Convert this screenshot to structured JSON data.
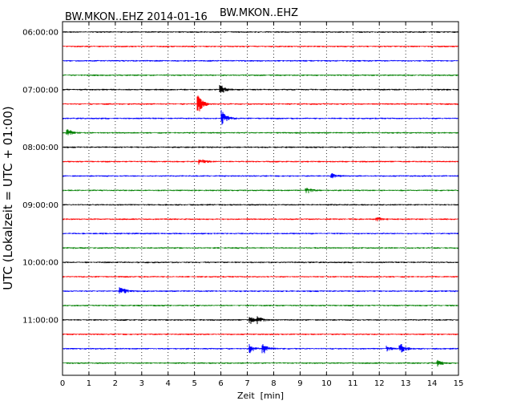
{
  "chart_data": {
    "type": "line",
    "title": "BW.MKON..EHZ",
    "subtitle": "BW.MKON..EHZ 2014-01-16",
    "xlabel": "Zeit  [min]",
    "ylabel": "UTC (Lokalzeit = UTC + 01:00)",
    "xlim": [
      0,
      15
    ],
    "x_ticks": [
      0,
      1,
      2,
      3,
      4,
      5,
      6,
      7,
      8,
      9,
      10,
      11,
      12,
      13,
      14,
      15
    ],
    "y_ticks": [
      "06:00:00",
      "07:00:00",
      "08:00:00",
      "09:00:00",
      "10:00:00",
      "11:00:00"
    ],
    "grid": true,
    "trace_colors": [
      "#000000",
      "#ff0000",
      "#0000ff",
      "#008000"
    ],
    "traces_count": 24,
    "rows_per_hour": 4,
    "events": [
      {
        "trace": 4,
        "minute": 6.0,
        "amp": 6
      },
      {
        "trace": 5,
        "minute": 5.15,
        "amp": 11
      },
      {
        "trace": 6,
        "minute": 6.05,
        "amp": 11
      },
      {
        "trace": 7,
        "minute": 0.2,
        "amp": 5
      },
      {
        "trace": 9,
        "minute": 5.2,
        "amp": 4
      },
      {
        "trace": 10,
        "minute": 10.2,
        "amp": 3
      },
      {
        "trace": 11,
        "minute": 9.25,
        "amp": 4
      },
      {
        "trace": 13,
        "minute": 11.9,
        "amp": 3
      },
      {
        "trace": 18,
        "minute": 2.2,
        "amp": 6
      },
      {
        "trace": 20,
        "minute": 7.1,
        "amp": 5
      },
      {
        "trace": 20,
        "minute": 7.4,
        "amp": 4
      },
      {
        "trace": 22,
        "minute": 7.1,
        "amp": 5
      },
      {
        "trace": 22,
        "minute": 7.6,
        "amp": 7
      },
      {
        "trace": 22,
        "minute": 12.3,
        "amp": 3
      },
      {
        "trace": 22,
        "minute": 12.8,
        "amp": 7
      },
      {
        "trace": 23,
        "minute": 14.2,
        "amp": 4
      }
    ]
  }
}
